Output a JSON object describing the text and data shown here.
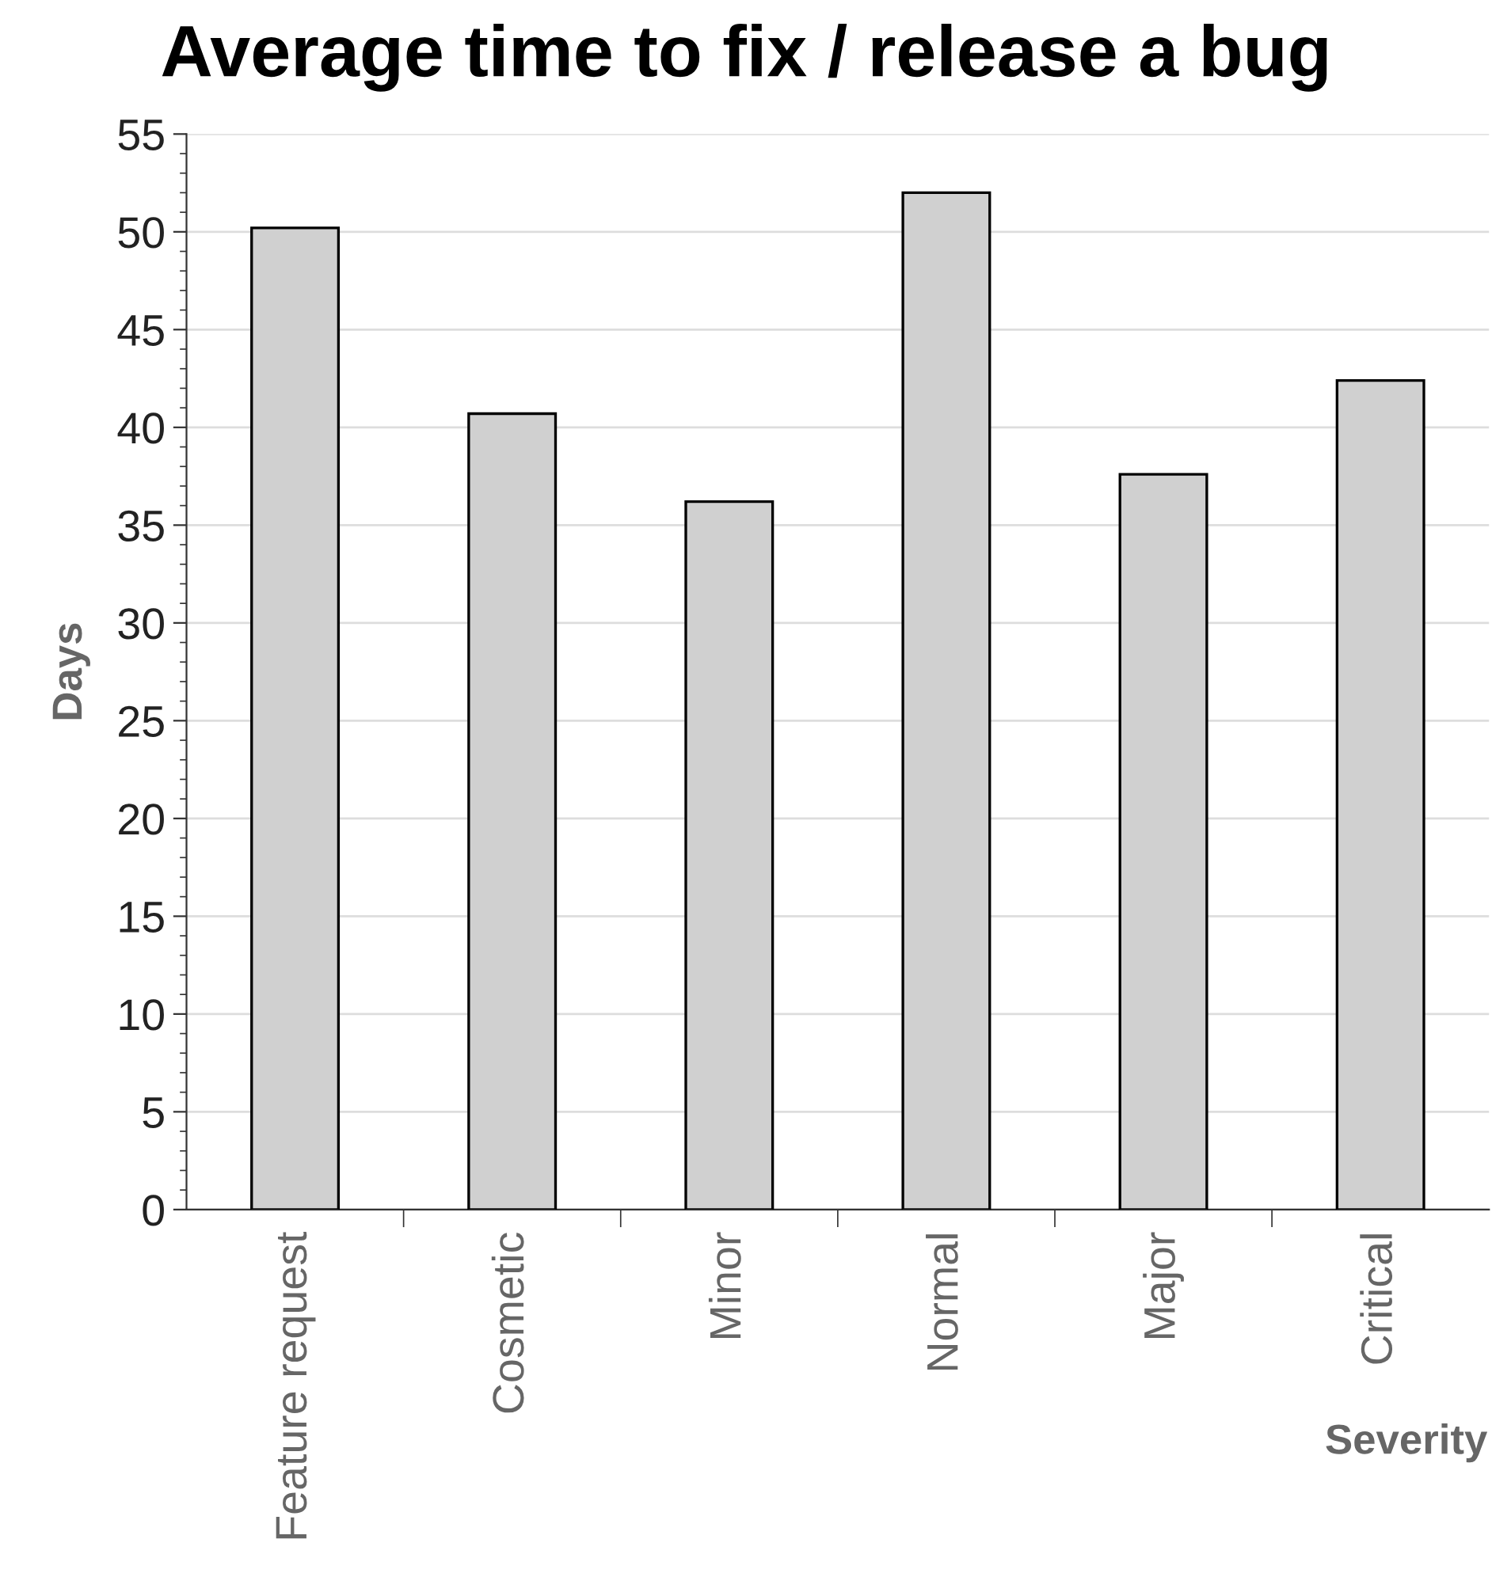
{
  "chart_data": {
    "type": "bar",
    "title": "Average time to fix / release a bug",
    "xlabel": "Severity",
    "ylabel": "Days",
    "categories": [
      "Feature request",
      "Cosmetic",
      "Minor",
      "Normal",
      "Major",
      "Critical"
    ],
    "values": [
      50.2,
      40.7,
      36.2,
      52.0,
      37.6,
      42.4
    ],
    "color": "#d0d0d0",
    "ylim": [
      0,
      55
    ],
    "yticks": [
      0,
      5,
      10,
      15,
      20,
      25,
      30,
      35,
      40,
      45,
      50,
      55
    ],
    "grid": "y",
    "legend": false
  }
}
